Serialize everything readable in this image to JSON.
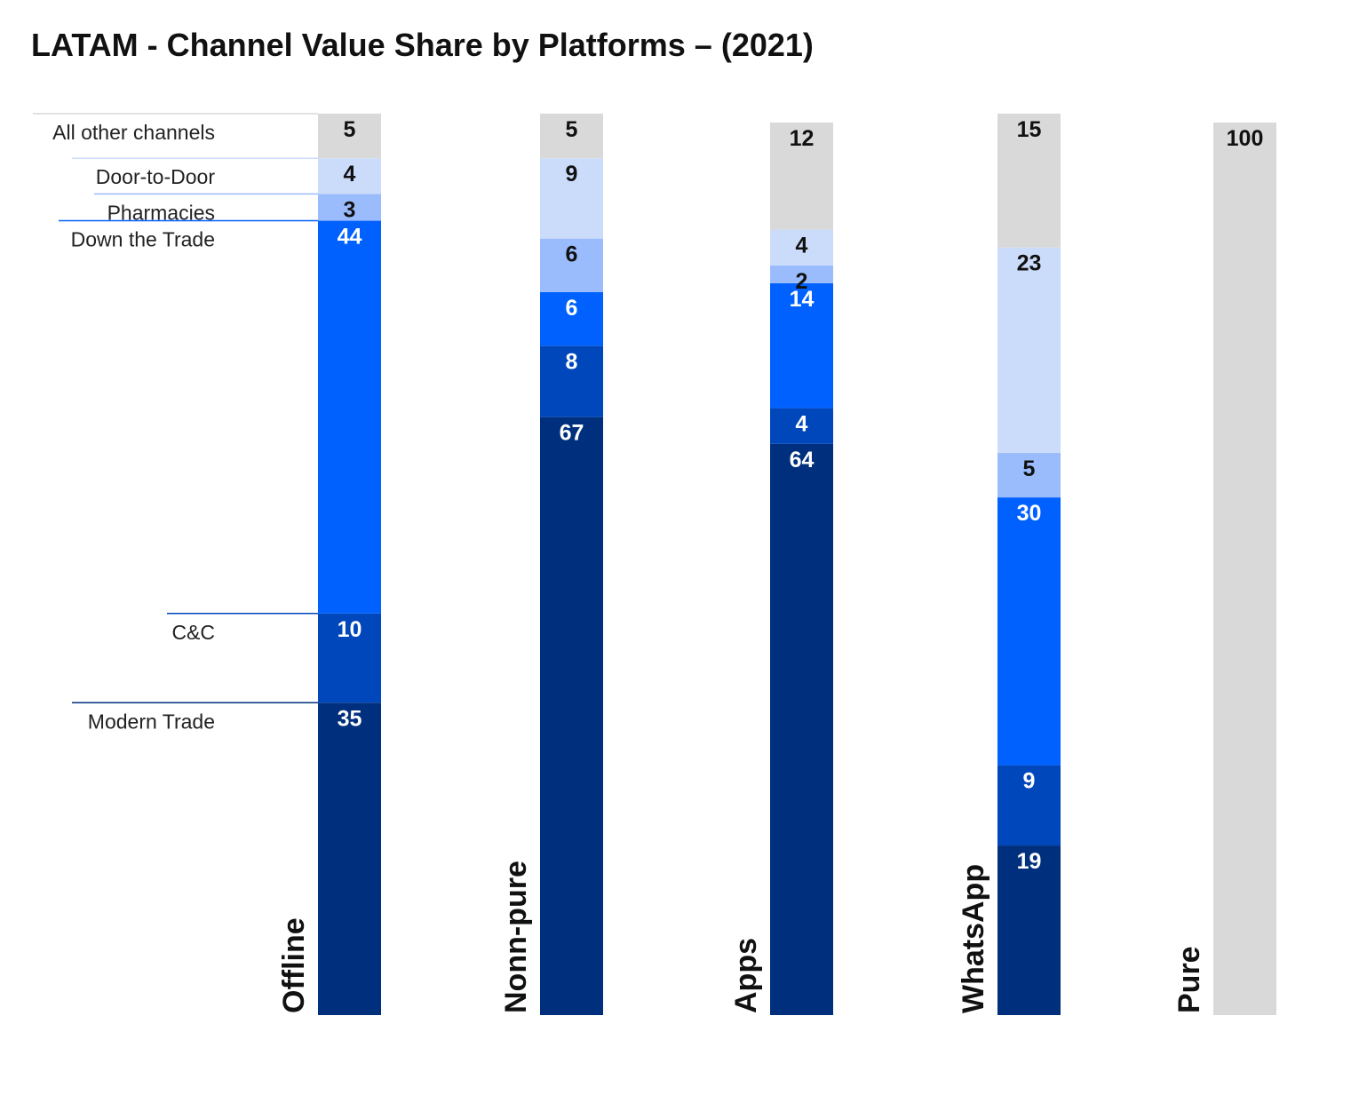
{
  "chart_data": {
    "type": "bar",
    "stacked": true,
    "title": "LATAM - Channel Value Share by Platforms – (2021)",
    "categories": [
      "Offline",
      "Nonn-pure",
      "Apps",
      "WhatsApp",
      "Pure"
    ],
    "series": [
      {
        "name": "Modern Trade",
        "color": "#00307d",
        "values": [
          35,
          67,
          64,
          19,
          0
        ]
      },
      {
        "name": "C&C",
        "color": "#0047bb",
        "values": [
          10,
          8,
          4,
          9,
          0
        ]
      },
      {
        "name": "Down the Trade",
        "color": "#0061fe",
        "values": [
          44,
          6,
          14,
          30,
          0
        ]
      },
      {
        "name": "Pharmacies",
        "color": "#9bbcfc",
        "values": [
          3,
          6,
          2,
          5,
          0
        ]
      },
      {
        "name": "Door-to-Door",
        "color": "#cbdcfb",
        "values": [
          4,
          9,
          4,
          23,
          0
        ]
      },
      {
        "name": "All other channels",
        "color": "#d9d9d9",
        "values": [
          5,
          5,
          12,
          15,
          100
        ]
      }
    ],
    "ylim": [
      0,
      100
    ],
    "legend_position": "left",
    "label_colors": {
      "dark": "#ffffff",
      "light": "#111111"
    }
  }
}
